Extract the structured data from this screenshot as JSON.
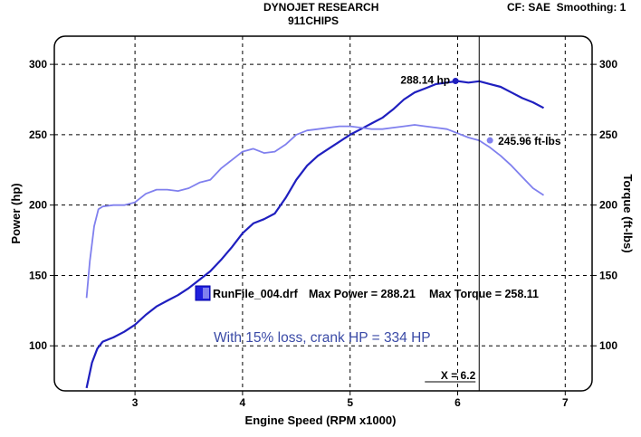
{
  "header": {
    "title": "DYNOJET RESEARCH",
    "subtitle": "911CHIPS",
    "settings": "CF: SAE  Smoothing: 1"
  },
  "chart_data": {
    "type": "line",
    "xlabel": "Engine Speed (RPM x1000)",
    "ylabel_left": "Power (hp)",
    "ylabel_right": "Torque (ft-lbs)",
    "xlim": [
      2.25,
      7.25
    ],
    "ylim_left": [
      68,
      320
    ],
    "ylim_right": [
      68,
      320
    ],
    "x_ticks": [
      3,
      4,
      5,
      6,
      7
    ],
    "y_ticks_left": [
      100,
      150,
      200,
      250,
      300
    ],
    "y_ticks_right": [
      100,
      150,
      200,
      250,
      300
    ],
    "grid": true,
    "series": [
      {
        "name": "Power",
        "axis": "left",
        "color": "#1f1fbf",
        "x": [
          2.55,
          2.6,
          2.65,
          2.7,
          2.8,
          2.9,
          3.0,
          3.1,
          3.2,
          3.3,
          3.4,
          3.5,
          3.6,
          3.7,
          3.8,
          3.9,
          4.0,
          4.1,
          4.2,
          4.3,
          4.4,
          4.5,
          4.6,
          4.7,
          4.8,
          4.9,
          5.0,
          5.1,
          5.2,
          5.3,
          5.4,
          5.5,
          5.6,
          5.7,
          5.8,
          5.9,
          6.0,
          6.1,
          6.2,
          6.3,
          6.4,
          6.5,
          6.6,
          6.7,
          6.8
        ],
        "values": [
          70,
          88,
          98,
          103,
          106,
          110,
          115,
          122,
          128,
          132,
          136,
          141,
          147,
          153,
          161,
          170,
          180,
          187,
          190,
          194,
          205,
          218,
          228,
          235,
          240,
          245,
          250,
          254,
          258,
          262,
          268,
          275,
          280,
          283,
          286,
          287,
          288.14,
          287,
          288,
          286,
          284,
          280,
          276,
          273,
          269
        ]
      },
      {
        "name": "Torque",
        "axis": "right",
        "color": "#8080ee",
        "x": [
          2.55,
          2.58,
          2.62,
          2.66,
          2.7,
          2.8,
          2.9,
          3.0,
          3.1,
          3.2,
          3.3,
          3.4,
          3.5,
          3.6,
          3.7,
          3.8,
          3.9,
          4.0,
          4.1,
          4.2,
          4.3,
          4.4,
          4.5,
          4.6,
          4.7,
          4.8,
          4.9,
          5.0,
          5.1,
          5.2,
          5.3,
          5.4,
          5.5,
          5.6,
          5.7,
          5.8,
          5.9,
          6.0,
          6.1,
          6.2,
          6.3,
          6.4,
          6.5,
          6.6,
          6.7,
          6.8
        ],
        "values": [
          134,
          160,
          185,
          197,
          199,
          200,
          200,
          202,
          208,
          211,
          211,
          210,
          212,
          216,
          218,
          226,
          232,
          238,
          240,
          237,
          238,
          243,
          250,
          253,
          254,
          255,
          256,
          256,
          255,
          254,
          254,
          255,
          256,
          257,
          256,
          255,
          254,
          251,
          248,
          245.96,
          241,
          235,
          228,
          220,
          212,
          207
        ]
      }
    ],
    "annotations": [
      {
        "text": "288.14 hp",
        "x": 5.98,
        "y": 288.14,
        "axis": "left",
        "color": "#1f1fbf"
      },
      {
        "text": "245.96 ft-lbs",
        "x": 6.3,
        "y": 245.96,
        "axis": "right",
        "color": "#8080ee"
      }
    ],
    "cursor": {
      "x": 6.2,
      "label": "X = 6.2"
    },
    "legend": {
      "position": "center",
      "run_file": "RunFile_004.drf",
      "max_power_label": "Max Power = 288.21",
      "max_torque_label": "Max Torque = 258.11"
    },
    "note": "With 15% loss, crank HP = 334 HP"
  }
}
